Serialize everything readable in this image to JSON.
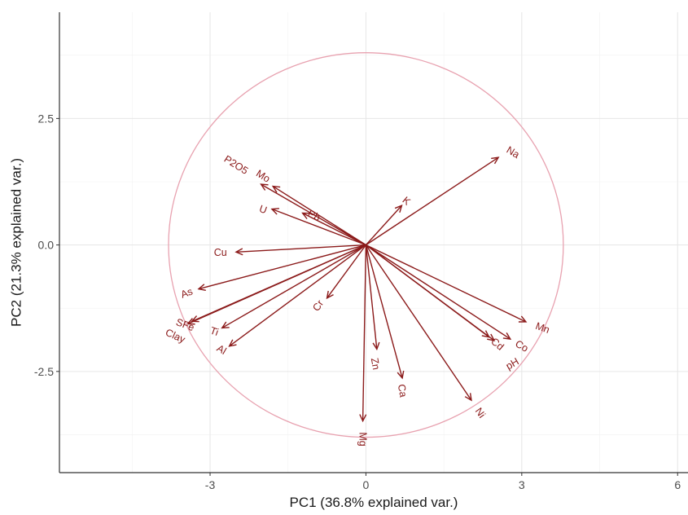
{
  "chart_data": {
    "type": "biplot",
    "xlabel": "PC1 (36.8% explained var.)",
    "ylabel": "PC2 (21.3% explained var.)",
    "xlim": [
      -5.9,
      6.2
    ],
    "ylim": [
      -4.5,
      4.6
    ],
    "xticks": [
      {
        "value": -3,
        "label": "-3"
      },
      {
        "value": 0,
        "label": "0"
      },
      {
        "value": 3,
        "label": "3"
      },
      {
        "value": 6,
        "label": "6"
      }
    ],
    "yticks": [
      {
        "value": -2.5,
        "label": "-2.5"
      },
      {
        "value": 0,
        "label": "0.0"
      },
      {
        "value": 2.5,
        "label": "2.5"
      }
    ],
    "grid": true,
    "circle": {
      "center": [
        0,
        0
      ],
      "radius": 3.8,
      "color": "#e8a2b0"
    },
    "arrow_color": "#8b1a1a",
    "variables": [
      {
        "name": "Na",
        "x": 2.55,
        "y": 1.73,
        "lx": 2.83,
        "ly": 1.83,
        "angle": 30
      },
      {
        "name": "K",
        "x": 0.69,
        "y": 0.78,
        "lx": 0.78,
        "ly": 0.87,
        "angle": 40
      },
      {
        "name": "P2O5",
        "x": -2.02,
        "y": 1.2,
        "lx": -2.5,
        "ly": 1.58,
        "angle": 32
      },
      {
        "name": "Mo",
        "x": -1.79,
        "y": 1.16,
        "lx": -1.98,
        "ly": 1.36,
        "angle": 32
      },
      {
        "name": "Pb",
        "x": -1.22,
        "y": 0.63,
        "lx": -1.0,
        "ly": 0.58,
        "angle": 28
      },
      {
        "name": "U",
        "x": -1.81,
        "y": 0.71,
        "lx": -1.98,
        "ly": 0.7,
        "angle": 20
      },
      {
        "name": "Cu",
        "x": -2.5,
        "y": -0.14,
        "lx": -2.8,
        "ly": -0.15,
        "angle": 0
      },
      {
        "name": "As",
        "x": -3.22,
        "y": -0.87,
        "lx": -3.45,
        "ly": -0.95,
        "angle": -20
      },
      {
        "name": "Clay",
        "x": -3.43,
        "y": -1.56,
        "lx": -3.67,
        "ly": -1.8,
        "angle": 24
      },
      {
        "name": "SFe",
        "x": -3.35,
        "y": -1.51,
        "lx": -3.48,
        "ly": -1.58,
        "angle": 20
      },
      {
        "name": "Ti",
        "x": -2.77,
        "y": -1.64,
        "lx": -2.92,
        "ly": -1.71,
        "angle": 20
      },
      {
        "name": "Al",
        "x": -2.63,
        "y": -2.0,
        "lx": -2.78,
        "ly": -2.07,
        "angle": 30
      },
      {
        "name": "Cr",
        "x": -0.75,
        "y": -1.05,
        "lx": -0.92,
        "ly": -1.2,
        "angle": -55
      },
      {
        "name": "Mg",
        "x": -0.06,
        "y": -3.48,
        "lx": -0.06,
        "ly": -3.84,
        "angle": 90
      },
      {
        "name": "Zn",
        "x": 0.21,
        "y": -2.06,
        "lx": 0.18,
        "ly": -2.35,
        "angle": 80
      },
      {
        "name": "Ca",
        "x": 0.7,
        "y": -2.63,
        "lx": 0.7,
        "ly": -2.88,
        "angle": 80
      },
      {
        "name": "Ni",
        "x": 2.03,
        "y": -3.07,
        "lx": 2.2,
        "ly": -3.32,
        "angle": 55
      },
      {
        "name": "Cd",
        "x": 2.37,
        "y": -1.82,
        "lx": 2.53,
        "ly": -1.96,
        "angle": 40
      },
      {
        "name": "pH",
        "x": 2.47,
        "y": -1.89,
        "lx": 2.82,
        "ly": -2.35,
        "angle": -30
      },
      {
        "name": "Co",
        "x": 2.78,
        "y": -1.86,
        "lx": 3.0,
        "ly": -2.0,
        "angle": 30
      },
      {
        "name": "Mn",
        "x": 3.08,
        "y": -1.52,
        "lx": 3.4,
        "ly": -1.64,
        "angle": 20
      }
    ]
  }
}
